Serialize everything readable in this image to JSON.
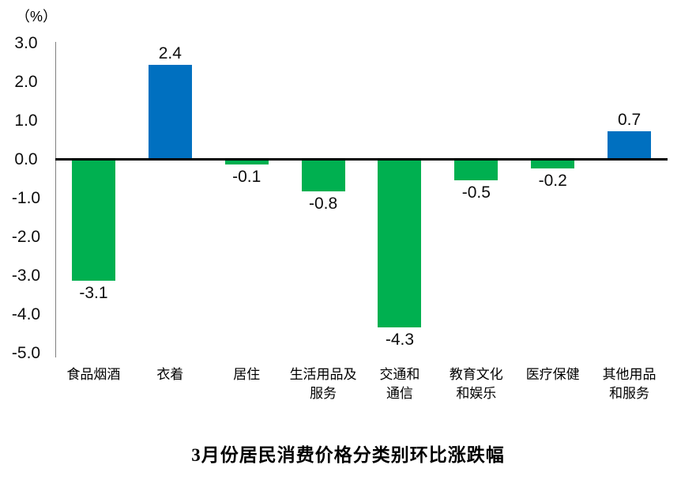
{
  "chart_data": {
    "type": "bar",
    "title": "3月份居民消费价格分类别环比涨跌幅",
    "unit_label": "（%）",
    "categories": [
      "食品烟酒",
      "衣着",
      "居住",
      "生活用品及\n服务",
      "交通和\n通信",
      "教育文化\n和娱乐",
      "医疗保健",
      "其他用品\n和服务"
    ],
    "values": [
      -3.1,
      2.4,
      -0.1,
      -0.8,
      -4.3,
      -0.5,
      -0.2,
      0.7
    ],
    "value_labels": [
      "-3.1",
      "2.4",
      "-0.1",
      "-0.8",
      "-4.3",
      "-0.5",
      "-0.2",
      "0.7"
    ],
    "xlabel": "",
    "ylabel": "%",
    "ylim": [
      -5.0,
      3.0
    ],
    "ytick_step": 1.0,
    "ytick_labels": [
      "3.0",
      "2.0",
      "1.0",
      "0.0",
      "-1.0",
      "-2.0",
      "-3.0",
      "-4.0",
      "-5.0"
    ],
    "ytick_values": [
      3,
      2,
      1,
      0,
      -1,
      -2,
      -3,
      -4,
      -5
    ],
    "grid": false,
    "legend": "none",
    "colors": {
      "positive_bar": "#0070C0",
      "negative_bar": "#00B050",
      "axis_line": "#808080",
      "zero_line": "#000000",
      "text": "#000000"
    }
  }
}
